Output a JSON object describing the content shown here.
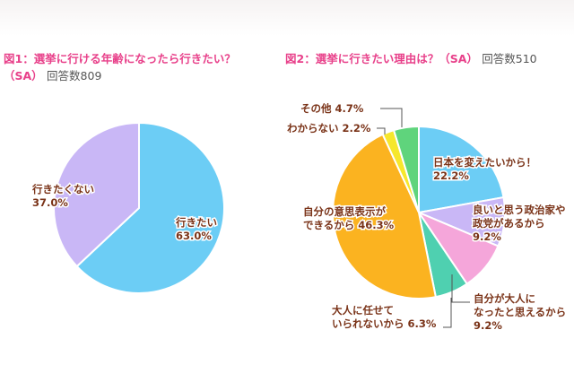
{
  "chart_data": [
    {
      "type": "pie",
      "title": "図1：選挙に行ける年齢になったら行きたい？",
      "subtitle_sa": "（SA）",
      "subtitle_n": "回答数809",
      "slices": [
        {
          "label": "行きたい",
          "value": 63.0,
          "display": "63.0%",
          "color": "#6ccdf5"
        },
        {
          "label": "行きたくない",
          "value": 37.0,
          "display": "37.0%",
          "color": "#c9b7f6"
        }
      ]
    },
    {
      "type": "pie",
      "title": "図2：選挙に行きたい理由は？",
      "subtitle_sa": "（SA）",
      "subtitle_n": "回答数510",
      "slices": [
        {
          "label": "日本を変えたいから！",
          "value": 22.2,
          "display": "22.2%",
          "color": "#6ccdf5"
        },
        {
          "label": "良いと思う政治家や政党があるから",
          "value": 9.2,
          "display": "9.2%",
          "color": "#c9b7f6"
        },
        {
          "label": "自分が大人になったと思えるから",
          "value": 9.2,
          "display": "9.2%",
          "color": "#f5a6da"
        },
        {
          "label": "大人に任せていられないから",
          "value": 6.3,
          "display": "6.3%",
          "color": "#4fd0b0"
        },
        {
          "label": "自分の意思表示ができるから",
          "value": 46.3,
          "display": "46.3%",
          "color": "#fbb320"
        },
        {
          "label": "わからない",
          "value": 2.2,
          "display": "2.2%",
          "color": "#f6e72c"
        },
        {
          "label": "その他",
          "value": 4.7,
          "display": "4.7%",
          "color": "#5fd47c"
        }
      ]
    }
  ]
}
